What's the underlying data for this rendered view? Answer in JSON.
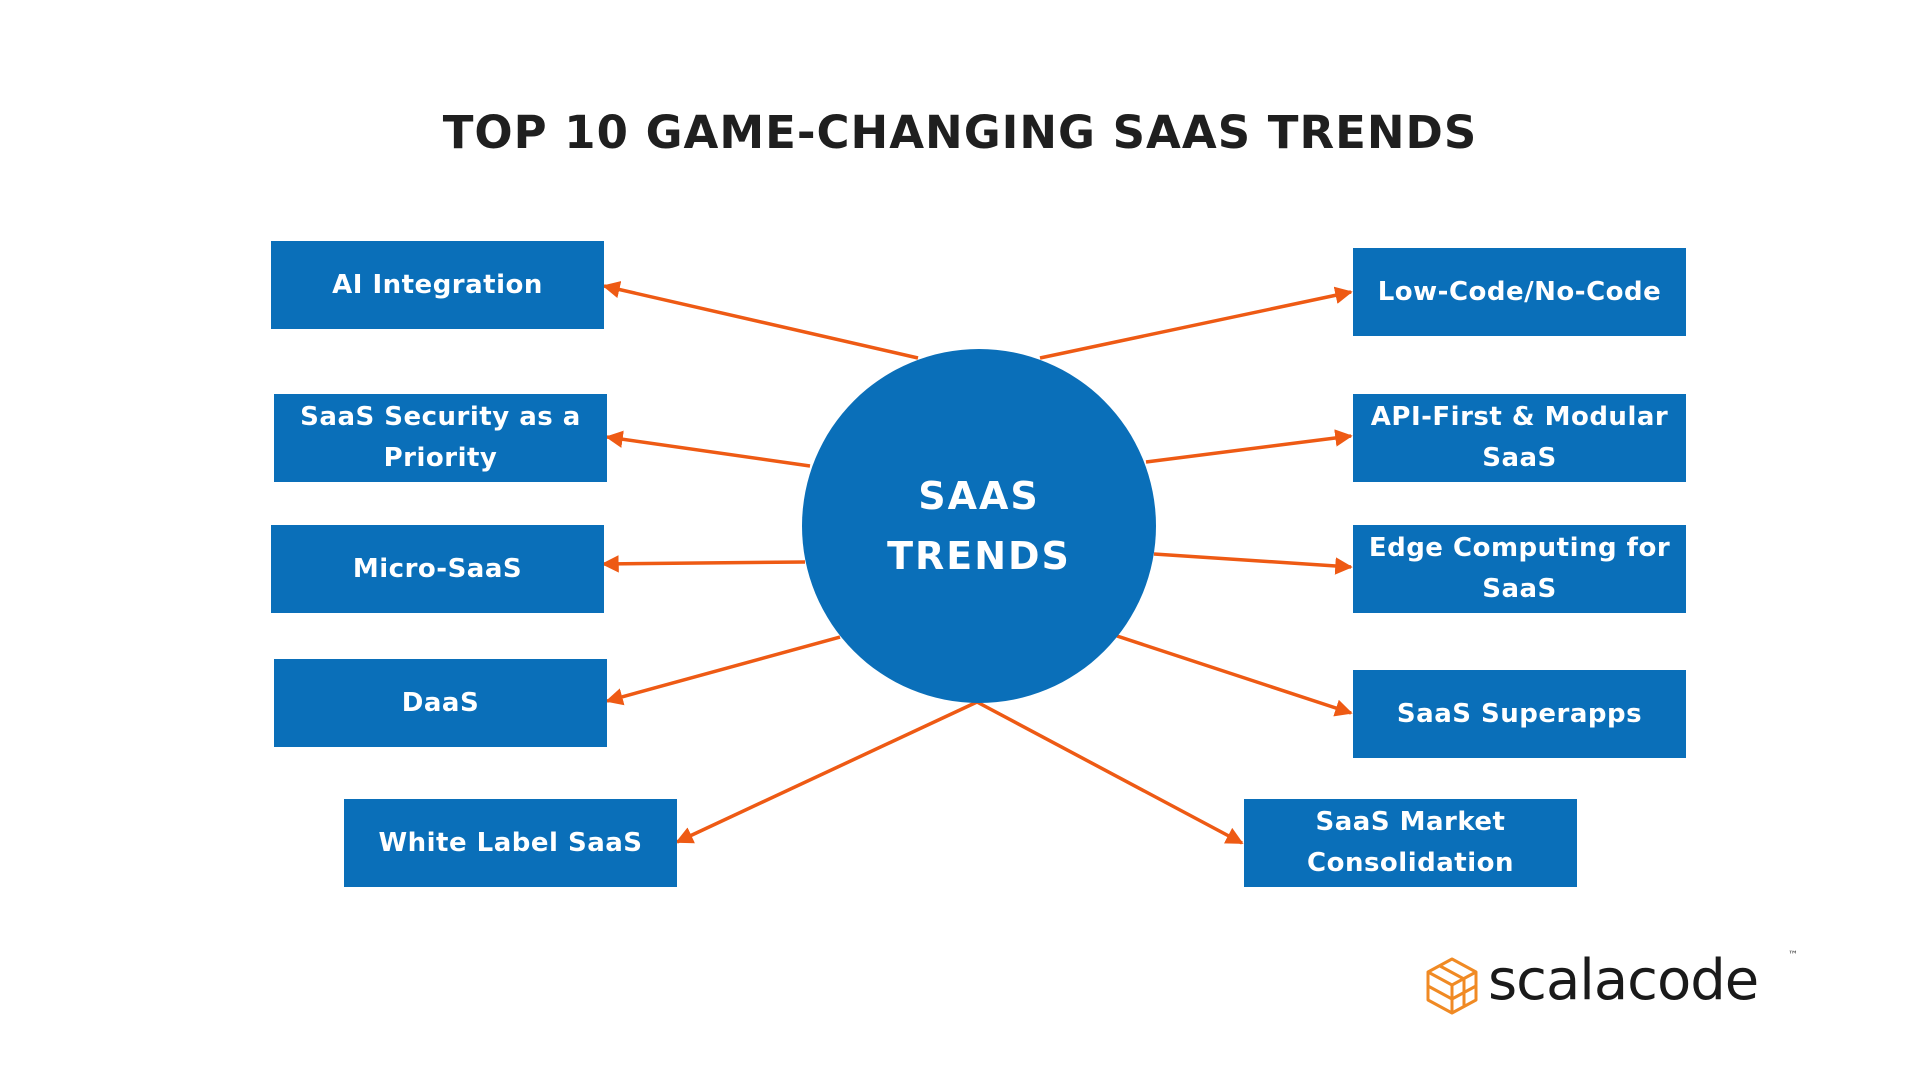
{
  "title": "TOP 10 GAME-CHANGING SAAS TRENDS",
  "hub": {
    "label": "SAAS\nTRENDS",
    "color": "#0a6fb9"
  },
  "nodes": [
    {
      "id": "ai-integration",
      "label": "AI Integration",
      "side": "left"
    },
    {
      "id": "saas-security",
      "label": "SaaS Security as a Priority",
      "side": "left"
    },
    {
      "id": "micro-saas",
      "label": "Micro-SaaS",
      "side": "left"
    },
    {
      "id": "daas",
      "label": "DaaS",
      "side": "left"
    },
    {
      "id": "white-label-saas",
      "label": "White Label SaaS",
      "side": "left"
    },
    {
      "id": "low-code-no-code",
      "label": "Low-Code/No-Code",
      "side": "right"
    },
    {
      "id": "api-first-modular",
      "label": "API-First & Modular SaaS",
      "side": "right"
    },
    {
      "id": "edge-computing",
      "label": "Edge Computing for SaaS",
      "side": "right"
    },
    {
      "id": "saas-superapps",
      "label": "SaaS Superapps",
      "side": "right"
    },
    {
      "id": "saas-market-consolidation",
      "label": "SaaS Market Consolidation",
      "side": "right"
    }
  ],
  "colors": {
    "box": "#0a6fb9",
    "arrow": "#ee5a14",
    "title": "#1f1f1f",
    "logo_accent": "#f08a24"
  },
  "logo": {
    "text": "scalacode",
    "trademark": "™",
    "icon": "isometric-cube-icon"
  }
}
